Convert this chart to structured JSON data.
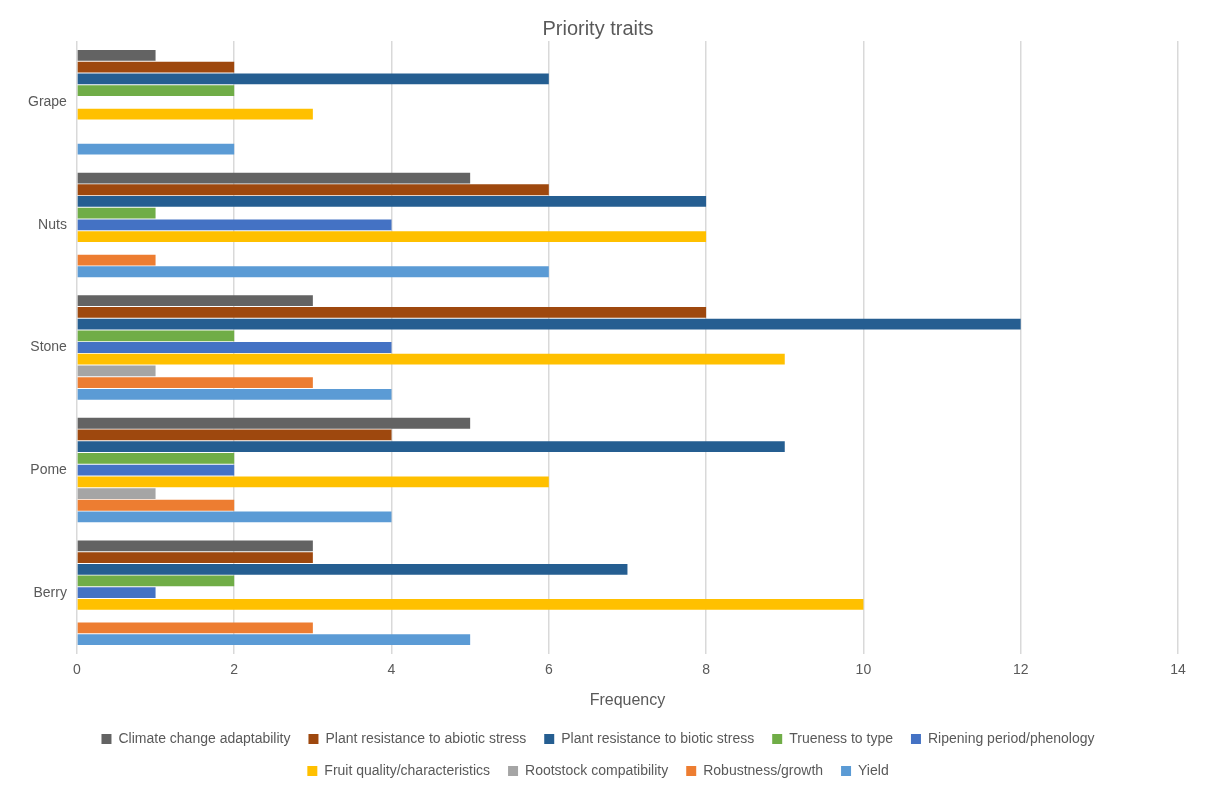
{
  "chart_data": {
    "type": "bar",
    "orientation": "horizontal",
    "title": "Priority traits",
    "xlabel": "Frequency",
    "categories": [
      "Grape",
      "Nuts",
      "Stone",
      "Pome",
      "Berry"
    ],
    "series": [
      {
        "name": "Climate change adaptability",
        "color": "#636363",
        "values": [
          1,
          5,
          3,
          5,
          3
        ]
      },
      {
        "name": "Plant resistance to abiotic stress",
        "color": "#9e480e",
        "values": [
          2,
          6,
          8,
          4,
          3
        ]
      },
      {
        "name": "Plant resistance to biotic stress",
        "color": "#255e91",
        "values": [
          6,
          8,
          12,
          9,
          7
        ]
      },
      {
        "name": "Trueness to type",
        "color": "#70ad47",
        "values": [
          2,
          1,
          2,
          2,
          2
        ]
      },
      {
        "name": "Ripening period/phenology",
        "color": "#4472c4",
        "values": [
          0,
          4,
          4,
          2,
          1
        ]
      },
      {
        "name": "Fruit quality/characteristics",
        "color": "#ffc000",
        "values": [
          3,
          8,
          9,
          6,
          10
        ]
      },
      {
        "name": "Rootstock compatibility",
        "color": "#a5a5a5",
        "values": [
          0,
          0,
          1,
          1,
          0
        ]
      },
      {
        "name": "Robustness/growth",
        "color": "#ed7d31",
        "values": [
          0,
          1,
          3,
          2,
          3
        ]
      },
      {
        "name": "Yield",
        "color": "#5b9bd5",
        "values": [
          2,
          6,
          4,
          4,
          5
        ]
      }
    ],
    "xlim": [
      0,
      14
    ],
    "xticks": [
      0,
      2,
      4,
      6,
      8,
      10,
      12,
      14
    ],
    "grid": "x",
    "legend": "bottom"
  }
}
